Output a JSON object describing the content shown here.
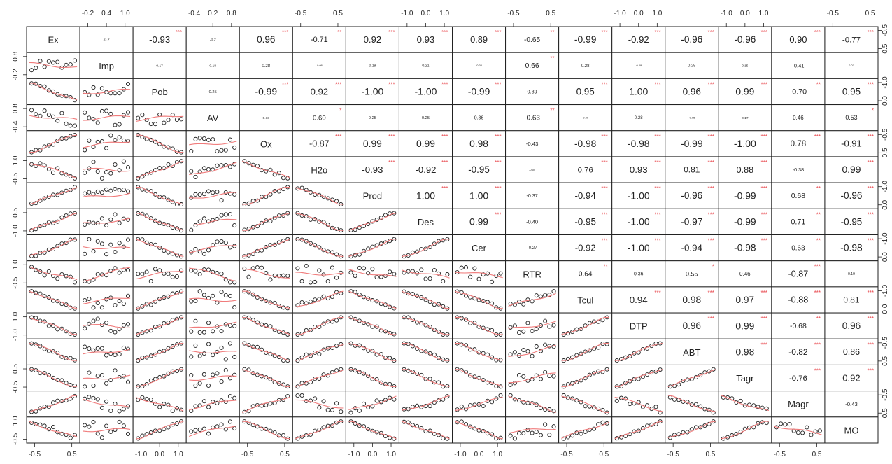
{
  "chart_data": {
    "type": "scatter",
    "subtype": "correlation-matrix",
    "variables": [
      "Ex",
      "Imp",
      "Pob",
      "AV",
      "Ox",
      "H2o",
      "Prod",
      "Des",
      "Cer",
      "RTR",
      "Tcul",
      "DTP",
      "ABT",
      "Tagr",
      "Magr",
      "MO"
    ],
    "correlations": [
      [
        "",
        "-0.2",
        "-0.93",
        "-0.2",
        "0.96",
        "-0.71",
        "0.92",
        "0.93",
        "0.89",
        "-0.65",
        "-0.99",
        "-0.92",
        "-0.96",
        "-0.96",
        "0.90",
        "-0.77"
      ],
      [
        "",
        "",
        "0.17",
        "0.18",
        "0.28",
        "-0.06",
        "0.19",
        "0.21",
        "-0.06",
        "0.66",
        "0.28",
        "-0.09",
        "0.25",
        "0.15",
        "-0.41",
        "0.07"
      ],
      [
        "",
        "",
        "",
        "0.25",
        "-0.99",
        "0.92",
        "-1.00",
        "-1.00",
        "-0.99",
        "0.39",
        "0.95",
        "1.00",
        "0.96",
        "0.99",
        "-0.70",
        "0.95"
      ],
      [
        "",
        "",
        "",
        "",
        "0.18",
        "0.60",
        "0.25",
        "0.25",
        "0.36",
        "-0.63",
        "-0.06",
        "0.28",
        "-0.05",
        "0.17",
        "0.46",
        "0.53"
      ],
      [
        "",
        "",
        "",
        "",
        "",
        "-0.87",
        "0.99",
        "0.99",
        "0.98",
        "-0.43",
        "-0.98",
        "-0.98",
        "-0.99",
        "-1.00",
        "0.78",
        "-0.91"
      ],
      [
        "",
        "",
        "",
        "",
        "",
        "",
        "-0.93",
        "-0.92",
        "-0.95",
        "-0.04",
        "0.76",
        "0.93",
        "0.81",
        "0.88",
        "-0.38",
        "0.99"
      ],
      [
        "",
        "",
        "",
        "",
        "",
        "",
        "",
        "1.00",
        "1.00",
        "-0.37",
        "-0.94",
        "-1.00",
        "-0.96",
        "-0.99",
        "0.68",
        "-0.96"
      ],
      [
        "",
        "",
        "",
        "",
        "",
        "",
        "",
        "",
        "0.99",
        "-0.40",
        "-0.95",
        "-1.00",
        "-0.97",
        "-0.99",
        "0.71",
        "-0.95"
      ],
      [
        "",
        "",
        "",
        "",
        "",
        "",
        "",
        "",
        "",
        "-0.27",
        "-0.92",
        "-1.00",
        "-0.94",
        "-0.98",
        "0.63",
        "-0.98"
      ],
      [
        "",
        "",
        "",
        "",
        "",
        "",
        "",
        "",
        "",
        "",
        "0.64",
        "0.36",
        "0.55",
        "0.46",
        "-0.87",
        "0.19"
      ],
      [
        "",
        "",
        "",
        "",
        "",
        "",
        "",
        "",
        "",
        "",
        "",
        "0.94",
        "0.98",
        "0.97",
        "-0.88",
        "0.81"
      ],
      [
        "",
        "",
        "",
        "",
        "",
        "",
        "",
        "",
        "",
        "",
        "",
        "",
        "0.96",
        "0.99",
        "-0.68",
        "0.96"
      ],
      [
        "",
        "",
        "",
        "",
        "",
        "",
        "",
        "",
        "",
        "",
        "",
        "",
        "",
        "0.98",
        "-0.82",
        "0.86"
      ],
      [
        "",
        "",
        "",
        "",
        "",
        "",
        "",
        "",
        "",
        "",
        "",
        "",
        "",
        "",
        "-0.76",
        "0.92"
      ],
      [
        "",
        "",
        "",
        "",
        "",
        "",
        "",
        "",
        "",
        "",
        "",
        "",
        "",
        "",
        "",
        "-0.43"
      ],
      [
        "",
        "",
        "",
        "",
        "",
        "",
        "",
        "",
        "",
        "",
        "",
        "",
        "",
        "",
        "",
        ""
      ]
    ],
    "significance": [
      [
        "",
        "",
        "***",
        "",
        "***",
        "**",
        "***",
        "***",
        "***",
        "**",
        "***",
        "***",
        "***",
        "***",
        "***",
        "***"
      ],
      [
        "",
        "",
        "",
        "",
        "",
        "",
        "",
        "",
        "",
        "**",
        "",
        "",
        "",
        "",
        "",
        ""
      ],
      [
        "",
        "",
        "",
        "",
        "***",
        "***",
        "***",
        "***",
        "***",
        "",
        "***",
        "***",
        "***",
        "***",
        "**",
        "***"
      ],
      [
        "",
        "",
        "",
        "",
        "",
        "*",
        "",
        "",
        "",
        "**",
        "",
        "",
        "",
        "",
        "",
        "*"
      ],
      [
        "",
        "",
        "",
        "",
        "",
        "***",
        "***",
        "***",
        "***",
        "",
        "***",
        "***",
        "***",
        "***",
        "***",
        "***"
      ],
      [
        "",
        "",
        "",
        "",
        "",
        "",
        "***",
        "***",
        "***",
        "",
        "***",
        "***",
        "***",
        "***",
        "",
        "***"
      ],
      [
        "",
        "",
        "",
        "",
        "",
        "",
        "",
        "***",
        "***",
        "",
        "***",
        "***",
        "***",
        "***",
        "**",
        "***"
      ],
      [
        "",
        "",
        "",
        "",
        "",
        "",
        "",
        "",
        "***",
        "",
        "***",
        "***",
        "***",
        "***",
        "**",
        "***"
      ],
      [
        "",
        "",
        "",
        "",
        "",
        "",
        "",
        "",
        "",
        "",
        "***",
        "***",
        "***",
        "***",
        "**",
        "***"
      ],
      [
        "",
        "",
        "",
        "",
        "",
        "",
        "",
        "",
        "",
        "",
        "**",
        "",
        "*",
        "",
        "***",
        ""
      ],
      [
        "",
        "",
        "",
        "",
        "",
        "",
        "",
        "",
        "",
        "",
        "",
        "***",
        "***",
        "***",
        "***",
        "***"
      ],
      [
        "",
        "",
        "",
        "",
        "",
        "",
        "",
        "",
        "",
        "",
        "",
        "",
        "***",
        "***",
        "**",
        "***"
      ],
      [
        "",
        "",
        "",
        "",
        "",
        "",
        "",
        "",
        "",
        "",
        "",
        "",
        "",
        "***",
        "***",
        "***"
      ],
      [
        "",
        "",
        "",
        "",
        "",
        "",
        "",
        "",
        "",
        "",
        "",
        "",
        "",
        "",
        "***",
        "***"
      ],
      [
        "",
        "",
        "",
        "",
        "",
        "",
        "",
        "",
        "",
        "",
        "",
        "",
        "",
        "",
        "",
        ""
      ],
      [
        "",
        "",
        "",
        "",
        "",
        "",
        "",
        "",
        "",
        "",
        "",
        "",
        "",
        "",
        "",
        ""
      ]
    ],
    "axis_ticks": {
      "top": [
        [
          "-0.2",
          "0.4",
          "1.0"
        ],
        [
          "-0.4",
          "0.2",
          "0.8"
        ],
        [
          "-0.5",
          "0.5"
        ],
        [
          "-1.0",
          "0.0",
          "1.0"
        ],
        [
          "-0.5",
          "0.5"
        ],
        [
          "-1.0",
          "0.0",
          "1.0"
        ],
        [
          "-1.0",
          "0.0",
          "1.0"
        ],
        [
          "-0.5",
          "0.5"
        ]
      ],
      "bottom": [
        [
          "-0.5",
          "0.5"
        ],
        [
          "-1.0",
          "0.0",
          "1.0"
        ],
        [
          "-0.5",
          "0.5"
        ],
        [
          "-1.0",
          "0.0",
          "1.0"
        ],
        [
          "-1.0",
          "0.0",
          "1.0"
        ],
        [
          "-0.5",
          "0.5"
        ],
        [
          "-0.5",
          "0.5"
        ],
        [
          "-0.5",
          "0.5"
        ]
      ],
      "left": [
        [
          "0.8",
          "-0.2"
        ],
        [
          "0.8",
          "-0.4"
        ],
        [
          "1.0",
          "-0.5"
        ],
        [
          "0.5",
          "-1.0"
        ],
        [
          "1.0",
          "-0.5"
        ],
        [
          "1.0",
          "-1.0"
        ],
        [
          "0.5",
          "-0.5"
        ],
        [
          "1.0",
          "-0.5"
        ]
      ],
      "right": [
        [
          "-0.5",
          "0.5"
        ],
        [
          "-1.0",
          "0.0"
        ],
        [
          "-0.5",
          "0.5"
        ],
        [
          "-1.0",
          "0.0"
        ],
        [
          "-1.0",
          "0.0"
        ],
        [
          "-1.0",
          "0.0"
        ],
        [
          "-0.5",
          "0.5"
        ],
        [
          "-0.5",
          "0.5"
        ]
      ]
    },
    "colors": {
      "points": "#222222",
      "smoother": "#f07b7b",
      "stars": "#e8474d",
      "frame": "#222222"
    }
  }
}
